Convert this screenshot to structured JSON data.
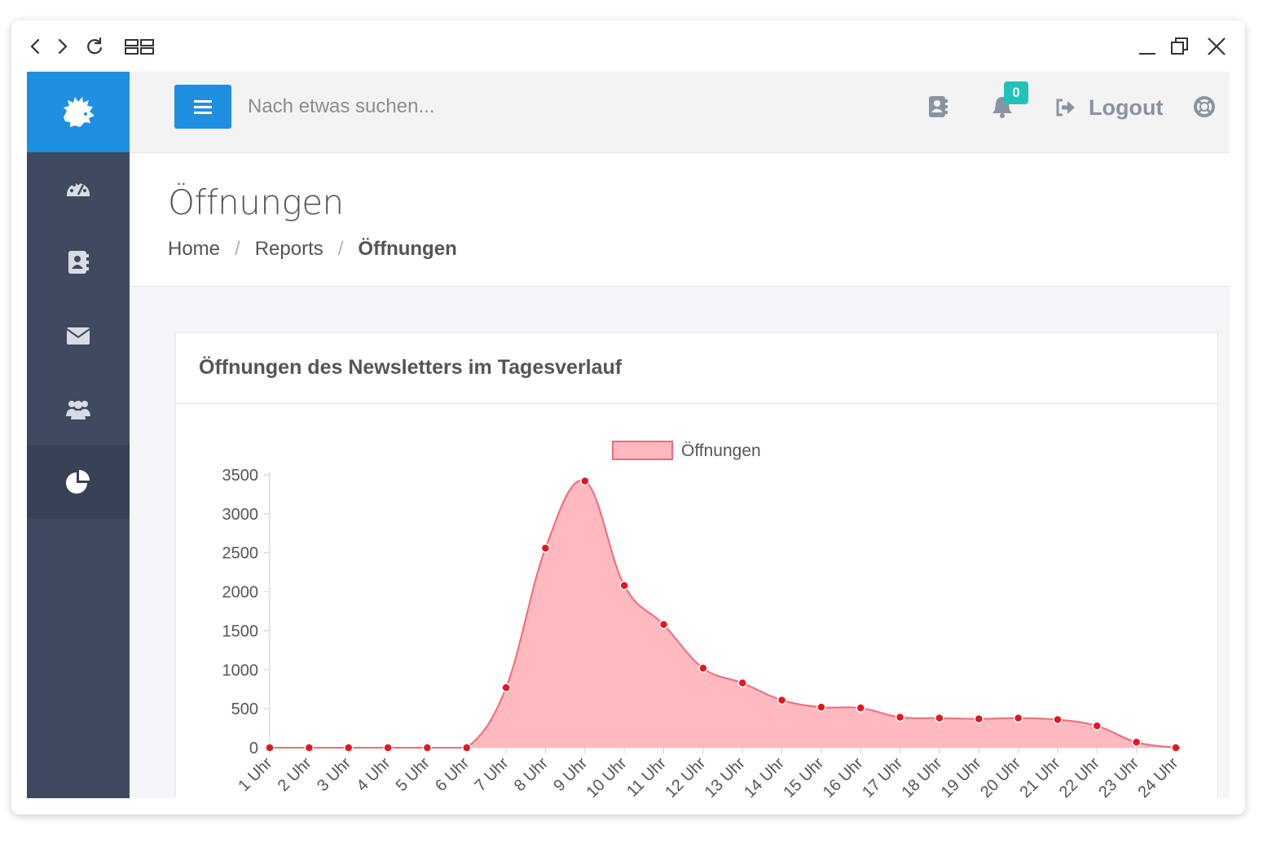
{
  "search": {
    "placeholder": "Nach etwas suchen..."
  },
  "notifications": {
    "count": "0"
  },
  "header": {
    "logout_label": "Logout"
  },
  "page": {
    "title": "Öffnungen",
    "breadcrumb": [
      "Home",
      "Reports",
      "Öffnungen"
    ]
  },
  "card": {
    "title": "Öffnungen des Newsletters im Tagesverlauf"
  },
  "colors": {
    "accent": "#1f8fe0",
    "sidebar": "#3e4a5f",
    "badge": "#20c3b8",
    "series_fill": "#ffb9bf",
    "series_line": "#f06b78",
    "series_point": "#e8141e"
  },
  "chart_data": {
    "type": "area",
    "categories": [
      "1 Uhr",
      "2 Uhr",
      "3 Uhr",
      "4 Uhr",
      "5 Uhr",
      "6 Uhr",
      "7 Uhr",
      "8 Uhr",
      "9 Uhr",
      "10 Uhr",
      "11 Uhr",
      "12 Uhr",
      "13 Uhr",
      "14 Uhr",
      "15 Uhr",
      "16 Uhr",
      "17 Uhr",
      "18 Uhr",
      "19 Uhr",
      "20 Uhr",
      "21 Uhr",
      "22 Uhr",
      "23 Uhr",
      "24 Uhr"
    ],
    "series": [
      {
        "name": "Öffnungen",
        "values": [
          0,
          0,
          0,
          0,
          0,
          0,
          770,
          2560,
          3420,
          2080,
          1580,
          1020,
          830,
          610,
          520,
          510,
          390,
          380,
          370,
          380,
          360,
          280,
          70,
          0
        ]
      }
    ],
    "y_ticks": [
      0,
      500,
      1000,
      1500,
      2000,
      2500,
      3000,
      3500
    ],
    "ylim": [
      0,
      3500
    ],
    "legend": "top-center",
    "grid": false
  }
}
